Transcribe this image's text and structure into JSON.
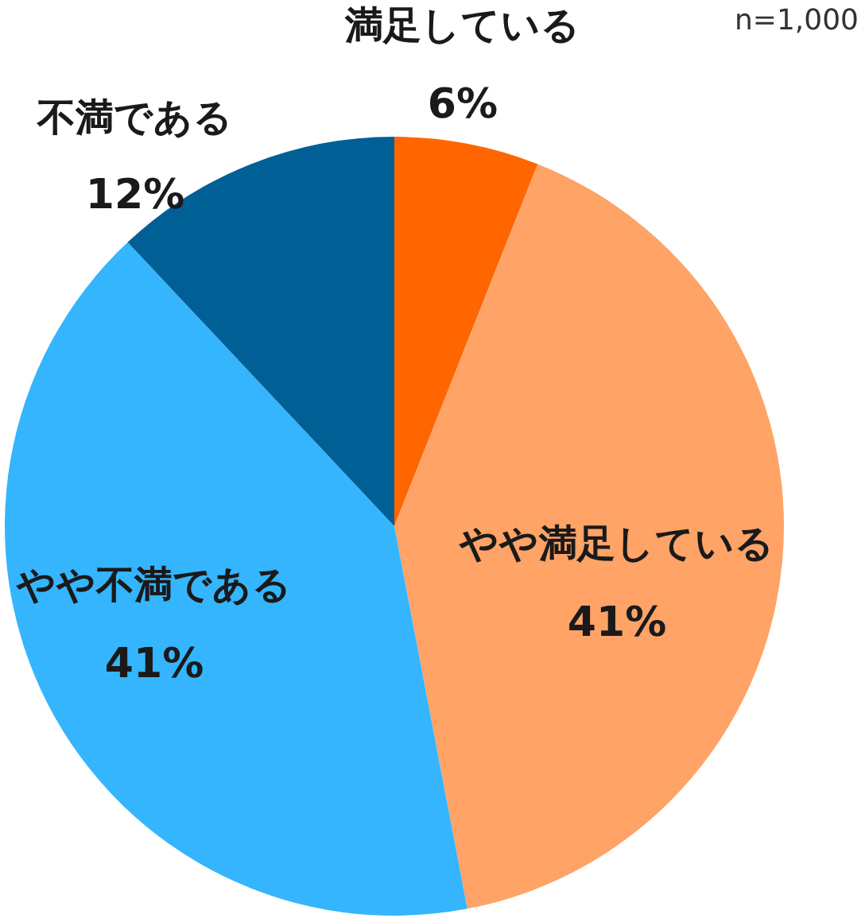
{
  "chart_data": {
    "type": "pie",
    "categories": [
      "満足している",
      "やや満足している",
      "やや不満である",
      "不満である"
    ],
    "values": [
      6,
      41,
      41,
      12
    ],
    "colors": [
      "#ff6600",
      "#ffa366",
      "#35b5fd",
      "#005f95"
    ],
    "value_labels": [
      "6%",
      "41%",
      "41%",
      "12%"
    ],
    "annotations": [
      "n=1,000"
    ],
    "legend": false
  }
}
